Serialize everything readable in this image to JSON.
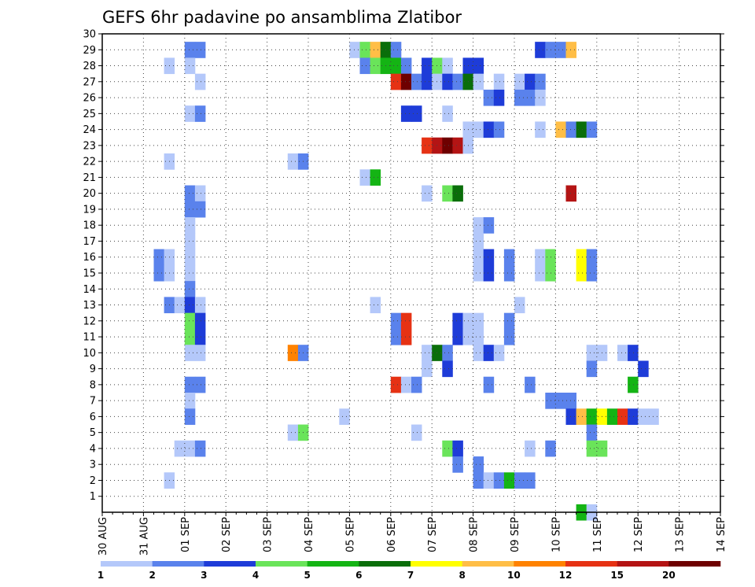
{
  "chart_data": {
    "type": "heatmap",
    "title": "GEFS 6hr padavine po ansamblima Zlatibor",
    "x_tick_labels": [
      "30 AUG",
      "31 AUG",
      "01 SEP",
      "02 SEP",
      "03 SEP",
      "04 SEP",
      "05 SEP",
      "06 SEP",
      "07 SEP",
      "08 SEP",
      "09 SEP",
      "10 SEP",
      "11 SEP",
      "12 SEP",
      "13 SEP",
      "14 SEP"
    ],
    "x_range_days": [
      0,
      15
    ],
    "y_tick_labels": [
      "1",
      "2",
      "3",
      "4",
      "5",
      "6",
      "7",
      "8",
      "9",
      "10",
      "11",
      "12",
      "13",
      "14",
      "15",
      "16",
      "17",
      "18",
      "19",
      "20",
      "21",
      "22",
      "23",
      "24",
      "25",
      "26",
      "27",
      "28",
      "29",
      "30"
    ],
    "y_range": [
      0,
      30
    ],
    "grid": true,
    "legend_position": "bottom",
    "legend_bins": [
      {
        "color": "#b4c8fa"
      },
      {
        "color": "#5a82ec"
      },
      {
        "color": "#1e3cd8"
      },
      {
        "color": "#6ae45a"
      },
      {
        "color": "#14b414"
      },
      {
        "color": "#0a6e0a"
      },
      {
        "color": "#ffff00"
      },
      {
        "color": "#ffbe46"
      },
      {
        "color": "#ff8200"
      },
      {
        "color": "#e63214"
      },
      {
        "color": "#b41414"
      },
      {
        "color": "#6e0000"
      }
    ],
    "legend_labels": [
      "1",
      "2",
      "3",
      "4",
      "5",
      "6",
      "7",
      "8",
      "10",
      "12",
      "15",
      "20"
    ],
    "cells_note": "each cell: [member, 6-h step index from 30 AUG 00Z, color-bin index]",
    "cells": [
      [
        29,
        24,
        0
      ],
      [
        29,
        25,
        3
      ],
      [
        29,
        26,
        7
      ],
      [
        29,
        27,
        5
      ],
      [
        29,
        28,
        1
      ],
      [
        29,
        8,
        1
      ],
      [
        29,
        9,
        1
      ],
      [
        29,
        42,
        2
      ],
      [
        29,
        43,
        1
      ],
      [
        29,
        44,
        1
      ],
      [
        29,
        45,
        7
      ],
      [
        28,
        6,
        0
      ],
      [
        28,
        8,
        0
      ],
      [
        28,
        25,
        1
      ],
      [
        28,
        26,
        3
      ],
      [
        28,
        27,
        4
      ],
      [
        28,
        28,
        4
      ],
      [
        28,
        29,
        1
      ],
      [
        28,
        31,
        2
      ],
      [
        28,
        32,
        3
      ],
      [
        28,
        33,
        0
      ],
      [
        28,
        35,
        2
      ],
      [
        28,
        36,
        2
      ],
      [
        27,
        9,
        0
      ],
      [
        27,
        28,
        9
      ],
      [
        27,
        29,
        11
      ],
      [
        27,
        30,
        1
      ],
      [
        27,
        31,
        2
      ],
      [
        27,
        32,
        0
      ],
      [
        27,
        33,
        2
      ],
      [
        27,
        34,
        1
      ],
      [
        27,
        35,
        5
      ],
      [
        27,
        36,
        0
      ],
      [
        27,
        38,
        0
      ],
      [
        27,
        40,
        0
      ],
      [
        27,
        41,
        2
      ],
      [
        27,
        42,
        1
      ],
      [
        26,
        37,
        1
      ],
      [
        26,
        38,
        2
      ],
      [
        26,
        40,
        1
      ],
      [
        26,
        41,
        1
      ],
      [
        26,
        42,
        0
      ],
      [
        25,
        8,
        0
      ],
      [
        25,
        9,
        1
      ],
      [
        25,
        29,
        2
      ],
      [
        25,
        30,
        2
      ],
      [
        25,
        33,
        0
      ],
      [
        24,
        35,
        0
      ],
      [
        24,
        36,
        0
      ],
      [
        24,
        37,
        2
      ],
      [
        24,
        38,
        1
      ],
      [
        24,
        42,
        0
      ],
      [
        24,
        44,
        7
      ],
      [
        24,
        45,
        1
      ],
      [
        24,
        46,
        5
      ],
      [
        24,
        47,
        1
      ],
      [
        23,
        31,
        9
      ],
      [
        23,
        32,
        10
      ],
      [
        23,
        33,
        11
      ],
      [
        23,
        34,
        10
      ],
      [
        23,
        35,
        0
      ],
      [
        22,
        6,
        0
      ],
      [
        22,
        18,
        0
      ],
      [
        22,
        19,
        1
      ],
      [
        21,
        25,
        0
      ],
      [
        21,
        26,
        4
      ],
      [
        20,
        8,
        1
      ],
      [
        20,
        9,
        0
      ],
      [
        20,
        31,
        0
      ],
      [
        20,
        33,
        3
      ],
      [
        20,
        34,
        5
      ],
      [
        20,
        45,
        10
      ],
      [
        19,
        8,
        1
      ],
      [
        19,
        9,
        1
      ],
      [
        18,
        8,
        0
      ],
      [
        18,
        36,
        0
      ],
      [
        18,
        37,
        1
      ],
      [
        17,
        8,
        0
      ],
      [
        17,
        36,
        0
      ],
      [
        16,
        5,
        1
      ],
      [
        16,
        6,
        0
      ],
      [
        16,
        8,
        0
      ],
      [
        16,
        36,
        0
      ],
      [
        16,
        37,
        2
      ],
      [
        16,
        39,
        1
      ],
      [
        16,
        42,
        0
      ],
      [
        16,
        43,
        3
      ],
      [
        16,
        46,
        6
      ],
      [
        16,
        47,
        1
      ],
      [
        15,
        5,
        1
      ],
      [
        15,
        6,
        0
      ],
      [
        15,
        8,
        0
      ],
      [
        15,
        36,
        0
      ],
      [
        15,
        37,
        2
      ],
      [
        15,
        39,
        1
      ],
      [
        15,
        42,
        0
      ],
      [
        15,
        43,
        3
      ],
      [
        15,
        46,
        6
      ],
      [
        15,
        47,
        1
      ],
      [
        14,
        8,
        1
      ],
      [
        13,
        6,
        1
      ],
      [
        13,
        7,
        0
      ],
      [
        13,
        8,
        2
      ],
      [
        13,
        9,
        0
      ],
      [
        13,
        26,
        0
      ],
      [
        13,
        40,
        0
      ],
      [
        12,
        8,
        3
      ],
      [
        12,
        9,
        2
      ],
      [
        12,
        28,
        1
      ],
      [
        12,
        29,
        9
      ],
      [
        12,
        34,
        2
      ],
      [
        12,
        35,
        0
      ],
      [
        12,
        36,
        0
      ],
      [
        12,
        39,
        1
      ],
      [
        11,
        8,
        3
      ],
      [
        11,
        9,
        2
      ],
      [
        11,
        28,
        1
      ],
      [
        11,
        29,
        9
      ],
      [
        11,
        34,
        2
      ],
      [
        11,
        35,
        0
      ],
      [
        11,
        36,
        0
      ],
      [
        11,
        39,
        1
      ],
      [
        10,
        8,
        0
      ],
      [
        10,
        9,
        0
      ],
      [
        10,
        18,
        8
      ],
      [
        10,
        19,
        1
      ],
      [
        10,
        31,
        0
      ],
      [
        10,
        32,
        5
      ],
      [
        10,
        33,
        1
      ],
      [
        10,
        36,
        0
      ],
      [
        10,
        37,
        2
      ],
      [
        10,
        38,
        0
      ],
      [
        10,
        47,
        0
      ],
      [
        10,
        48,
        0
      ],
      [
        10,
        50,
        0
      ],
      [
        10,
        51,
        2
      ],
      [
        9,
        31,
        0
      ],
      [
        9,
        33,
        2
      ],
      [
        9,
        47,
        1
      ],
      [
        9,
        52,
        2
      ],
      [
        8,
        8,
        1
      ],
      [
        8,
        9,
        1
      ],
      [
        8,
        28,
        9
      ],
      [
        8,
        29,
        0
      ],
      [
        8,
        30,
        1
      ],
      [
        8,
        37,
        1
      ],
      [
        8,
        41,
        1
      ],
      [
        8,
        51,
        4
      ],
      [
        7,
        8,
        0
      ],
      [
        7,
        43,
        1
      ],
      [
        7,
        44,
        1
      ],
      [
        7,
        45,
        1
      ],
      [
        6,
        8,
        1
      ],
      [
        6,
        23,
        0
      ],
      [
        6,
        45,
        2
      ],
      [
        6,
        46,
        7
      ],
      [
        6,
        47,
        4
      ],
      [
        6,
        48,
        6
      ],
      [
        6,
        49,
        4
      ],
      [
        6,
        50,
        9
      ],
      [
        6,
        51,
        2
      ],
      [
        6,
        52,
        0
      ],
      [
        6,
        53,
        0
      ],
      [
        5,
        18,
        0
      ],
      [
        5,
        19,
        3
      ],
      [
        5,
        30,
        0
      ],
      [
        5,
        47,
        1
      ],
      [
        4,
        7,
        0
      ],
      [
        4,
        8,
        0
      ],
      [
        4,
        9,
        1
      ],
      [
        4,
        33,
        3
      ],
      [
        4,
        34,
        2
      ],
      [
        4,
        41,
        0
      ],
      [
        4,
        43,
        1
      ],
      [
        4,
        47,
        3
      ],
      [
        4,
        48,
        3
      ],
      [
        3,
        34,
        1
      ],
      [
        3,
        36,
        1
      ],
      [
        2,
        6,
        0
      ],
      [
        2,
        36,
        1
      ],
      [
        2,
        37,
        0
      ],
      [
        2,
        38,
        1
      ],
      [
        2,
        39,
        4
      ],
      [
        2,
        40,
        1
      ],
      [
        2,
        41,
        1
      ],
      [
        0,
        46,
        4
      ],
      [
        0,
        47,
        0
      ]
    ]
  }
}
